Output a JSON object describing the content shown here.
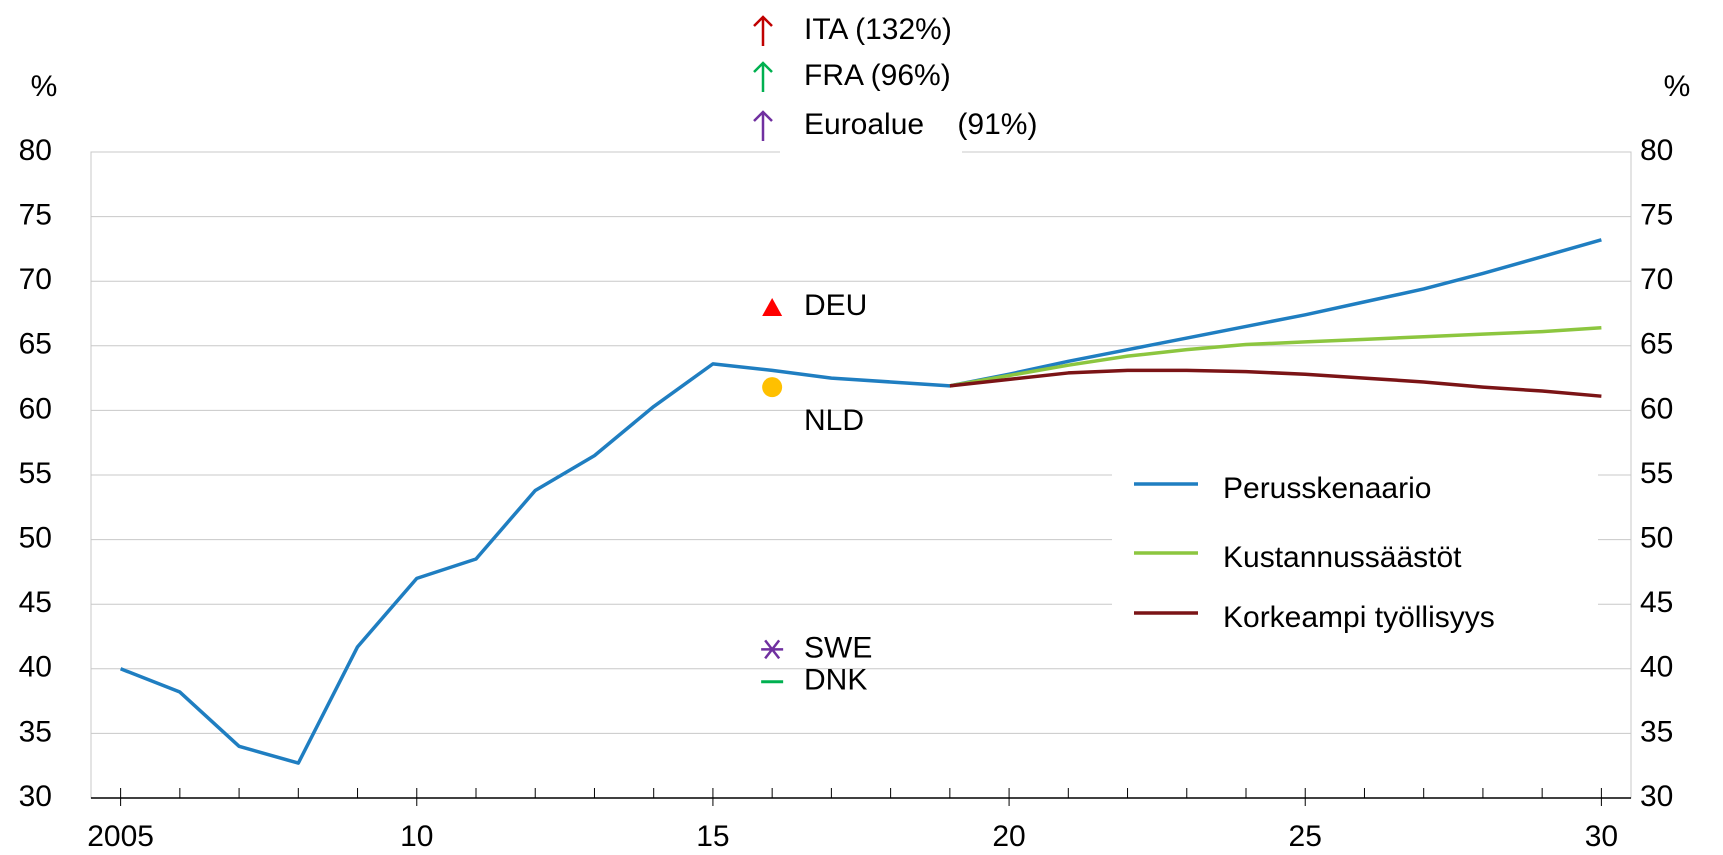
{
  "chart_data": {
    "type": "line",
    "y_label": "%",
    "y2_label": "%",
    "x": [
      2005,
      2006,
      2007,
      2008,
      2009,
      2010,
      2011,
      2012,
      2013,
      2014,
      2015,
      2016,
      2017,
      2018,
      2019,
      2020,
      2021,
      2022,
      2023,
      2024,
      2025,
      2026,
      2027,
      2028,
      2029,
      2030
    ],
    "xlim": [
      2004.5,
      2030.5
    ],
    "xticks": [
      2005,
      {
        "value": 2010,
        "label": "10"
      },
      {
        "value": 2015,
        "label": "15"
      },
      {
        "value": 2020,
        "label": "20"
      },
      {
        "value": 2025,
        "label": "25"
      },
      {
        "value": 2030,
        "label": "30"
      }
    ],
    "ylim": [
      30,
      80
    ],
    "yticks": [
      30,
      35,
      40,
      45,
      50,
      55,
      60,
      65,
      70,
      75,
      80
    ],
    "y2lim": [
      30,
      80
    ],
    "y2ticks": [
      30,
      35,
      40,
      45,
      50,
      55,
      60,
      65,
      70,
      75,
      80
    ],
    "grid": true,
    "legend": "right",
    "series": [
      {
        "name": "Perusskenaario",
        "color": "#1f7ec1",
        "values": [
          40,
          38.2,
          34,
          32.7,
          41.7,
          47,
          48.5,
          53.8,
          56.5,
          60.3,
          63.6,
          63.1,
          62.5,
          62.2,
          61.9,
          62.8,
          63.8,
          64.7,
          65.6,
          66.5,
          67.4,
          68.4,
          69.4,
          70.6,
          71.9,
          73.2
        ]
      },
      {
        "name": "Kustannussäästöt",
        "color": "#8cc63f",
        "values": [
          null,
          null,
          null,
          null,
          null,
          null,
          null,
          null,
          null,
          null,
          null,
          null,
          null,
          null,
          61.9,
          62.7,
          63.5,
          64.2,
          64.7,
          65.1,
          65.3,
          65.5,
          65.7,
          65.9,
          66.1,
          66.4
        ]
      },
      {
        "name": "Korkeampi työllisyys",
        "color": "#7b1416",
        "values": [
          null,
          null,
          null,
          null,
          null,
          null,
          null,
          null,
          null,
          null,
          null,
          null,
          null,
          null,
          61.9,
          62.4,
          62.9,
          63.1,
          63.1,
          63.0,
          62.8,
          62.5,
          62.2,
          61.8,
          61.5,
          61.1
        ]
      }
    ],
    "points": [
      {
        "name": "DEU",
        "x": 2016,
        "value": 68,
        "marker": "triangle",
        "color": "#ff0000"
      },
      {
        "name": "NLD",
        "x": 2016,
        "value": 61.8,
        "marker": "circle",
        "color": "#ffc000"
      },
      {
        "name": "SWE",
        "x": 2016,
        "value": 41.5,
        "marker": "star",
        "color": "#7030a0"
      },
      {
        "name": "DNK",
        "x": 2016,
        "value": 39,
        "marker": "dash",
        "color": "#00b050"
      }
    ],
    "off_scale": [
      {
        "label": "ITA (132%)",
        "color": "#c00000"
      },
      {
        "label": "FRA (96%)",
        "color": "#00b050"
      },
      {
        "label": "Euroalue    (91%)",
        "color": "#7030a0"
      }
    ]
  }
}
